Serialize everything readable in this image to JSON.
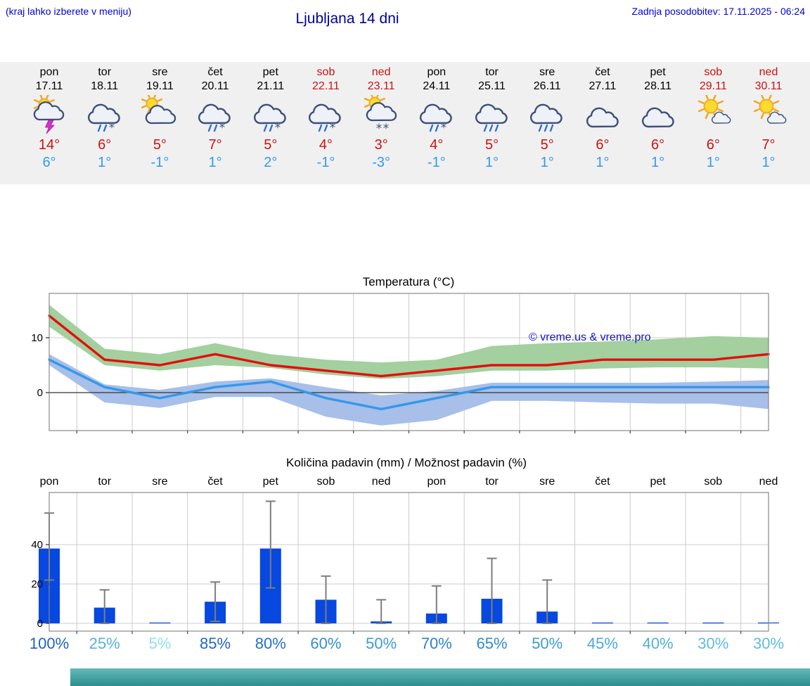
{
  "header": {
    "hint": "(kraj lahko izberete v meniju)",
    "title": "Ljubljana 14 dni",
    "last_update": "Zadnja posodobitev: 17.11.2025 - 06:24"
  },
  "days": [
    {
      "name": "pon",
      "date": "17.11",
      "weekend": false,
      "icon": "storm-sun",
      "tmax": "14°",
      "tmin": "6°"
    },
    {
      "name": "tor",
      "date": "18.11",
      "weekend": false,
      "icon": "sleet",
      "tmax": "6°",
      "tmin": "1°"
    },
    {
      "name": "sre",
      "date": "19.11",
      "weekend": false,
      "icon": "sun-cloud",
      "tmax": "5°",
      "tmin": "-1°"
    },
    {
      "name": "čet",
      "date": "20.11",
      "weekend": false,
      "icon": "sleet",
      "tmax": "7°",
      "tmin": "1°"
    },
    {
      "name": "pet",
      "date": "21.11",
      "weekend": false,
      "icon": "sleet",
      "tmax": "5°",
      "tmin": "2°"
    },
    {
      "name": "sob",
      "date": "22.11",
      "weekend": true,
      "icon": "sleet",
      "tmax": "4°",
      "tmin": "-1°"
    },
    {
      "name": "ned",
      "date": "23.11",
      "weekend": true,
      "icon": "snow-sun",
      "tmax": "3°",
      "tmin": "-3°"
    },
    {
      "name": "pon",
      "date": "24.11",
      "weekend": false,
      "icon": "sleet",
      "tmax": "4°",
      "tmin": "-1°"
    },
    {
      "name": "tor",
      "date": "25.11",
      "weekend": false,
      "icon": "rain",
      "tmax": "5°",
      "tmin": "1°"
    },
    {
      "name": "sre",
      "date": "26.11",
      "weekend": false,
      "icon": "rain",
      "tmax": "5°",
      "tmin": "1°"
    },
    {
      "name": "čet",
      "date": "27.11",
      "weekend": false,
      "icon": "cloudy",
      "tmax": "6°",
      "tmin": "1°"
    },
    {
      "name": "pet",
      "date": "28.11",
      "weekend": false,
      "icon": "cloudy",
      "tmax": "6°",
      "tmin": "1°"
    },
    {
      "name": "sob",
      "date": "29.11",
      "weekend": true,
      "icon": "mostly-sunny",
      "tmax": "6°",
      "tmin": "1°"
    },
    {
      "name": "ned",
      "date": "30.11",
      "weekend": true,
      "icon": "mostly-sunny",
      "tmax": "7°",
      "tmin": "1°"
    }
  ],
  "precip_probability": {
    "labels": [
      "100%",
      "25%",
      "5%",
      "85%",
      "80%",
      "60%",
      "50%",
      "70%",
      "65%",
      "50%",
      "45%",
      "40%",
      "30%",
      "30%"
    ],
    "colors": [
      "#1e62c8",
      "#55b2de",
      "#8fdfee",
      "#2066c8",
      "#2470ca",
      "#338ed2",
      "#3d9ad6",
      "#2b82cf",
      "#3089d1",
      "#3d9ad6",
      "#4ba8da",
      "#51aedc",
      "#5fbce2",
      "#5fbce2"
    ]
  },
  "chart_data": [
    {
      "type": "line",
      "title": "Temperatura (°C)",
      "categories": [
        "17.11",
        "18.11",
        "19.11",
        "20.11",
        "21.11",
        "22.11",
        "23.11",
        "24.11",
        "25.11",
        "26.11",
        "27.11",
        "28.11",
        "29.11",
        "30.11"
      ],
      "ylim": [
        -7,
        18
      ],
      "yticks": [
        0,
        10
      ],
      "grid": true,
      "watermark": "© vreme.us & vreme.pro",
      "watermark_color": "#1212cc",
      "series": [
        {
          "name": "temp-max",
          "color": "#e60d0d",
          "values": [
            14,
            6,
            5,
            7,
            5,
            4,
            3,
            4,
            5,
            5,
            6,
            6,
            6,
            7
          ]
        },
        {
          "name": "temp-min",
          "color": "#3598e8",
          "values": [
            6,
            1,
            -1,
            1,
            2,
            -1,
            -3,
            -1,
            1,
            1,
            1,
            1,
            1,
            1
          ]
        }
      ],
      "bands": [
        {
          "name": "temp-max-range",
          "color": "#a3d09e",
          "upper": [
            16,
            8,
            7,
            9,
            7,
            6,
            5.5,
            6,
            8.5,
            9,
            9.3,
            9.7,
            10.3,
            10
          ],
          "lower": [
            12,
            5,
            4,
            5,
            4.5,
            3.3,
            2.5,
            3,
            4,
            4,
            4.4,
            4.6,
            4.6,
            4.4
          ]
        },
        {
          "name": "temp-min-range",
          "color": "#a7bfe9",
          "upper": [
            7,
            1.5,
            0.5,
            2,
            2.6,
            1,
            -0.5,
            0.3,
            1.8,
            1.8,
            1.8,
            1.8,
            2,
            2.3
          ],
          "lower": [
            5,
            -1.8,
            -2.8,
            -0.8,
            -0.8,
            -4.4,
            -6,
            -5,
            -1.5,
            -1.5,
            -1.8,
            -2,
            -2,
            -3
          ]
        }
      ]
    },
    {
      "type": "bar",
      "title": "Količina padavin (mm) / Možnost padavin (%)",
      "categories": [
        "pon",
        "tor",
        "sre",
        "čet",
        "pet",
        "sob",
        "ned",
        "pon",
        "tor",
        "sre",
        "čet",
        "pet",
        "sob",
        "ned"
      ],
      "values": [
        38,
        8,
        0.3,
        11,
        38,
        12,
        1,
        5,
        12.5,
        6,
        0.3,
        0.3,
        0.3,
        0.3
      ],
      "whiskers": [
        [
          22,
          56
        ],
        [
          0,
          17
        ],
        null,
        [
          1,
          21
        ],
        [
          18,
          62
        ],
        [
          0,
          24
        ],
        [
          0,
          12
        ],
        [
          0,
          19
        ],
        [
          0,
          33
        ],
        [
          0,
          22
        ],
        null,
        null,
        null,
        null
      ],
      "bar_color": "#0648e0",
      "whisker_color": "#7d7d7d",
      "ylim": [
        -4,
        66
      ],
      "yticks": [
        0,
        20,
        40
      ],
      "probability_percent": [
        100,
        25,
        5,
        85,
        80,
        60,
        50,
        70,
        65,
        50,
        45,
        40,
        30,
        30
      ]
    }
  ],
  "colors": {
    "header_text": "#0000d8",
    "page_title": "#000099",
    "tmax_red": "#cc1111",
    "tmin_blue": "#3399ee",
    "weekend_red": "#cc1111",
    "strip_bg": "#f0f0f0",
    "footer_teal": "#2e8e8e"
  }
}
